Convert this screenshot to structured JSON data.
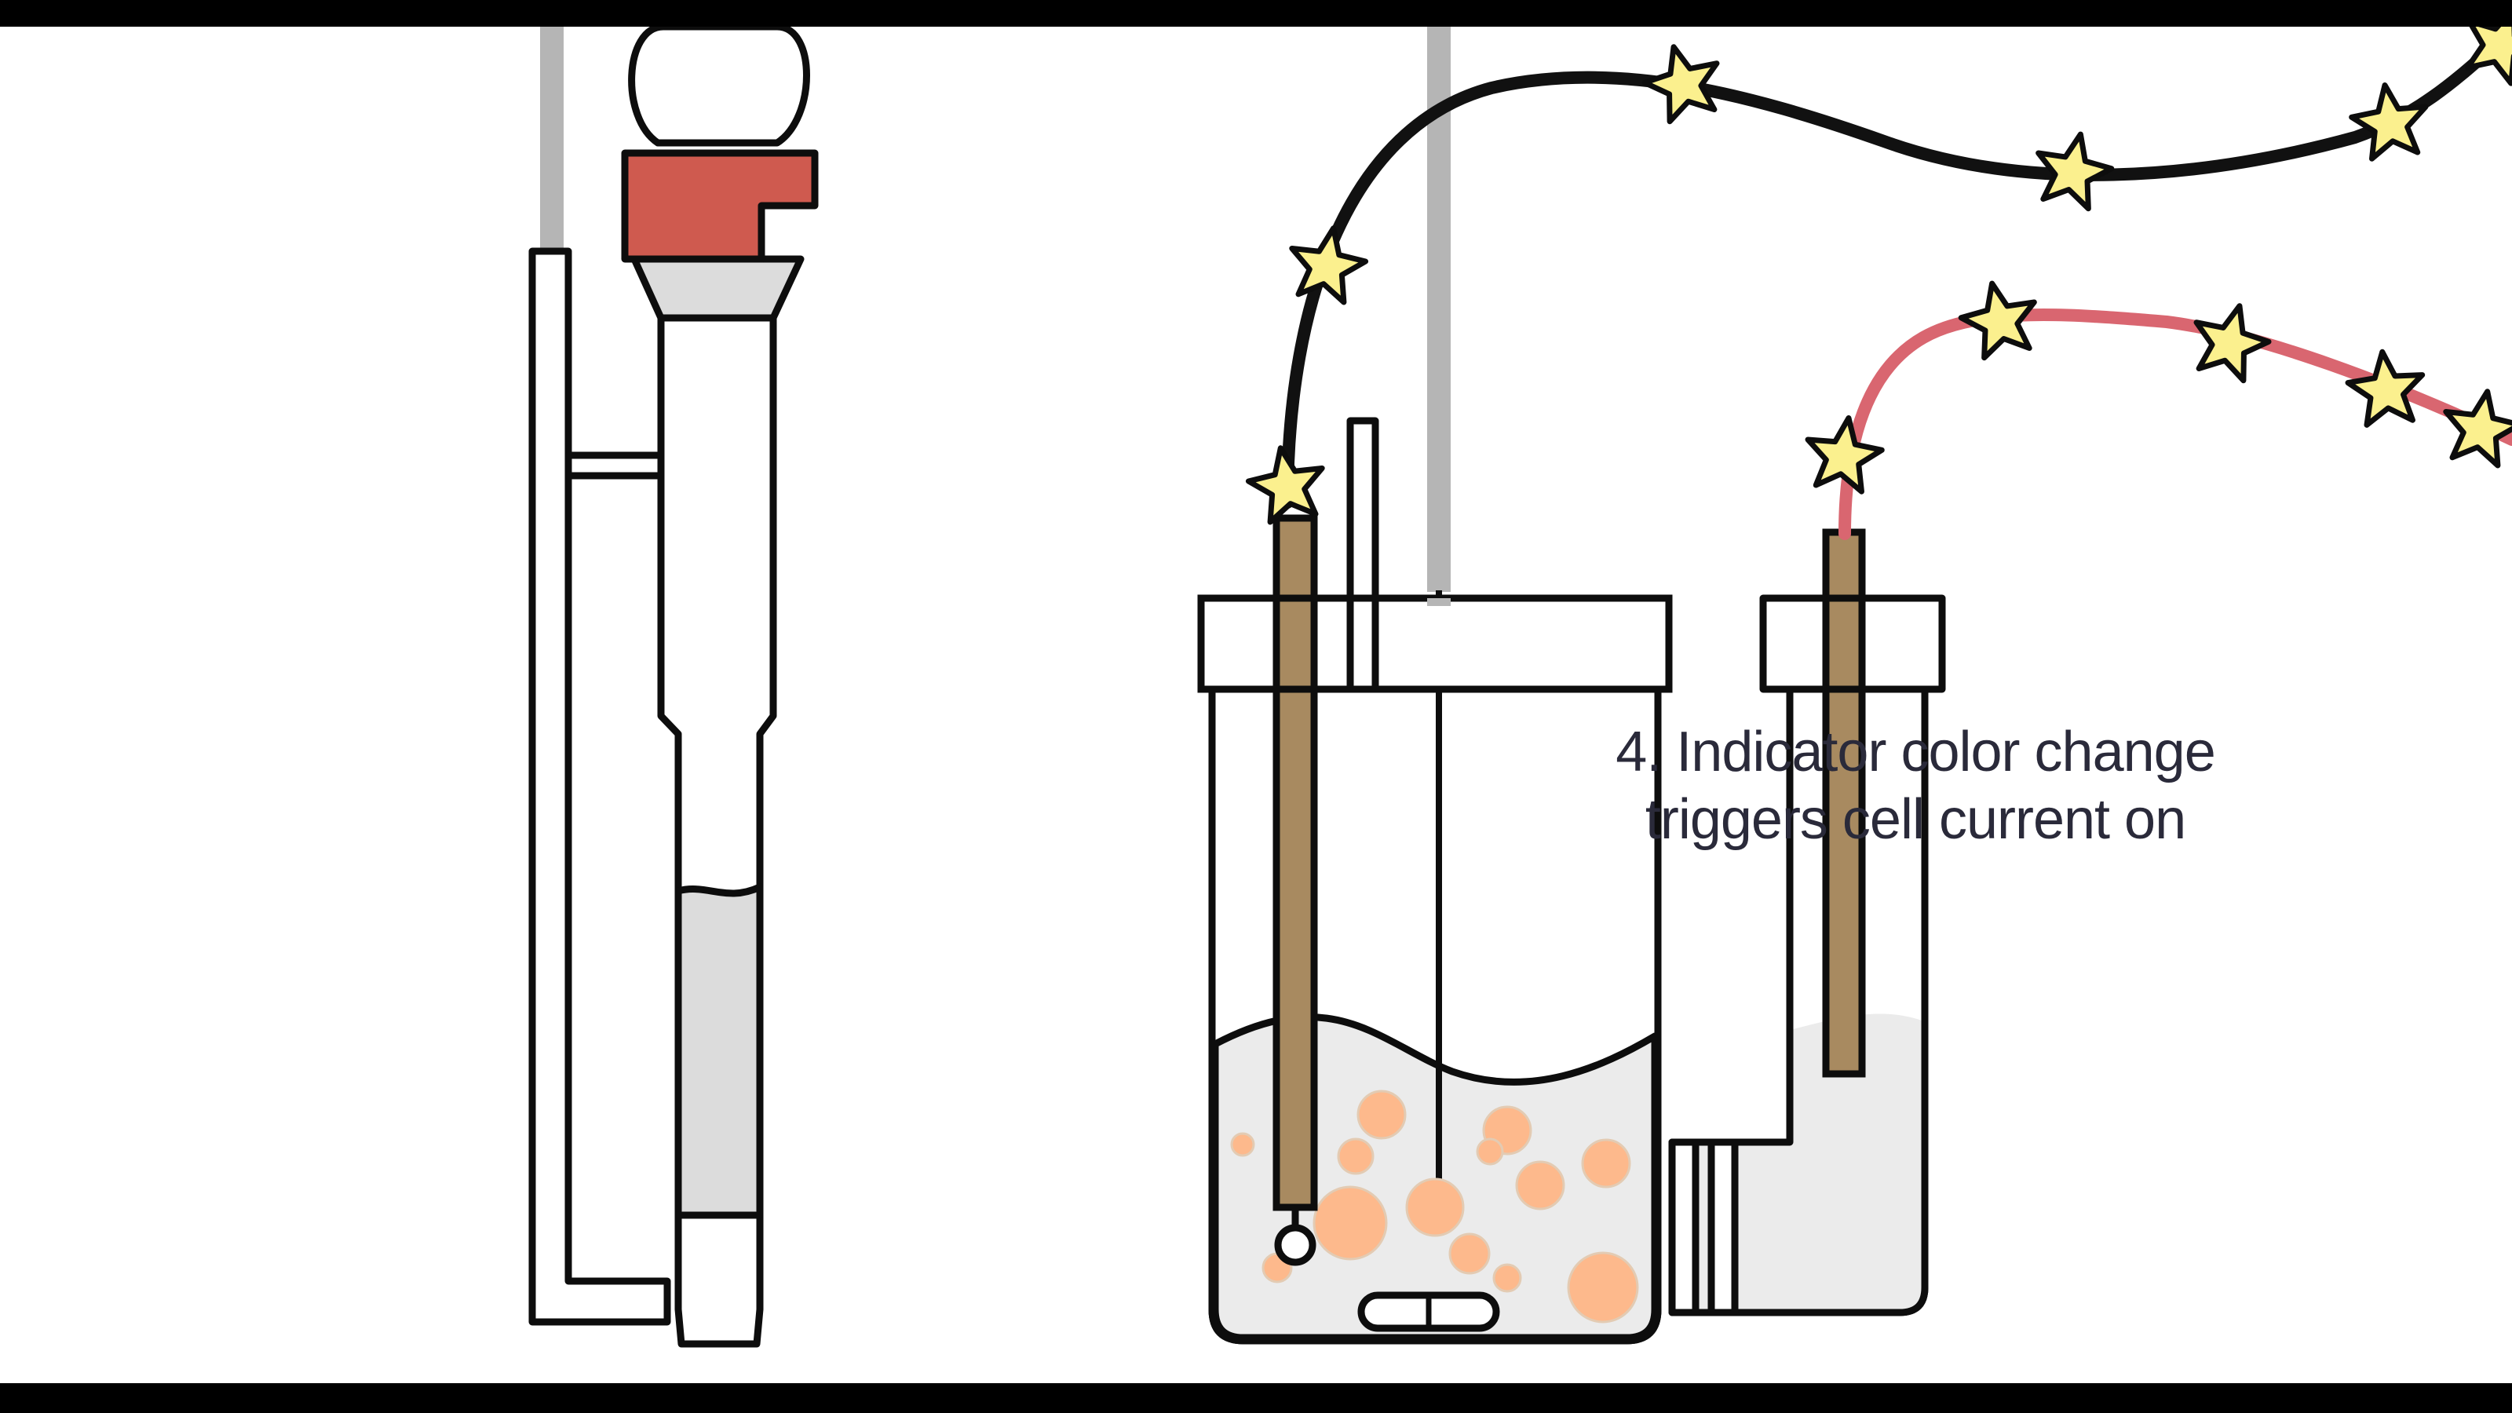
{
  "caption": {
    "line1": "4. Indicator color change",
    "line2": "triggers cell current on"
  },
  "colors": {
    "outline": "#0d0d0d",
    "solution": "#ebebeb",
    "burette_liquid": "#dcdcdc",
    "stopper": "#cf5a4f",
    "electrode": "#a88a60",
    "bubble": "#fdb98c",
    "star": "#fbf08e",
    "wire_black": "#111111",
    "wire_red": "#d96670",
    "support_rod": "#b5b5b5"
  },
  "icons": {
    "stars": "star-icon",
    "bubbles": "bubble"
  }
}
